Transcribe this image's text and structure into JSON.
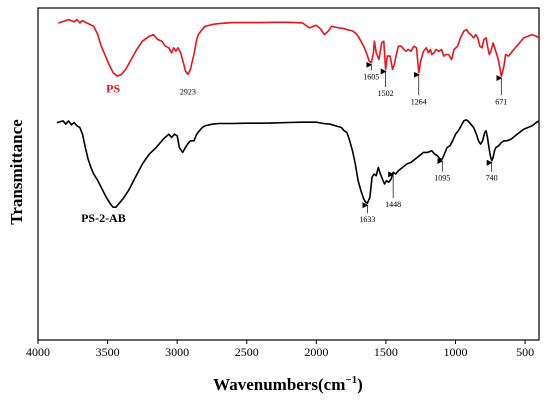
{
  "chart_data": {
    "type": "line",
    "xlabel": "Wavenumbers",
    "xlabel_unit": "(cm",
    "xlabel_unit_sup": "−1",
    "xlabel_unit_close": ")",
    "ylabel": "Transmittance",
    "xlim": [
      4000,
      400
    ],
    "x_reversed": true,
    "xticks": [
      4000,
      3500,
      3000,
      2500,
      2000,
      1500,
      1000,
      500
    ],
    "ylim": [
      0,
      1
    ],
    "y_ticks_shown": false,
    "grid": false,
    "legend": "none",
    "series": [
      {
        "name": "PS",
        "color": "#e8141b",
        "x": [
          3850,
          3780,
          3740,
          3720,
          3700,
          3680,
          3650,
          3600,
          3570,
          3550,
          3520,
          3490,
          3460,
          3430,
          3400,
          3370,
          3330,
          3290,
          3250,
          3200,
          3170,
          3140,
          3110,
          3085,
          3060,
          3040,
          3025,
          3010,
          2995,
          2975,
          2955,
          2940,
          2923,
          2905,
          2880,
          2860,
          2848,
          2830,
          2800,
          2750,
          2700,
          2600,
          2500,
          2400,
          2300,
          2200,
          2100,
          2050,
          2000,
          1970,
          1942,
          1915,
          1890,
          1870,
          1840,
          1800,
          1780,
          1745,
          1720,
          1700,
          1680,
          1660,
          1640,
          1620,
          1605,
          1590,
          1583,
          1570,
          1550,
          1530,
          1515,
          1502,
          1490,
          1470,
          1452,
          1440,
          1425,
          1410,
          1390,
          1370,
          1355,
          1340,
          1320,
          1300,
          1280,
          1264,
          1250,
          1230,
          1210,
          1195,
          1180,
          1170,
          1155,
          1140,
          1120,
          1100,
          1085,
          1070,
          1050,
          1028,
          1010,
          985,
          965,
          940,
          920,
          906,
          890,
          870,
          855,
          840,
          825,
          810,
          795,
          780,
          770,
          757,
          745,
          730,
          715,
          700,
          690,
          671,
          660,
          650,
          640,
          620,
          600,
          570,
          540,
          510,
          480,
          450,
          420,
          400
        ],
        "y": [
          0.955,
          0.965,
          0.958,
          0.965,
          0.955,
          0.962,
          0.955,
          0.945,
          0.92,
          0.89,
          0.86,
          0.83,
          0.805,
          0.795,
          0.8,
          0.815,
          0.845,
          0.875,
          0.9,
          0.915,
          0.92,
          0.905,
          0.9,
          0.885,
          0.88,
          0.865,
          0.88,
          0.87,
          0.88,
          0.865,
          0.835,
          0.81,
          0.8,
          0.815,
          0.86,
          0.905,
          0.92,
          0.93,
          0.945,
          0.95,
          0.953,
          0.956,
          0.956,
          0.956,
          0.957,
          0.957,
          0.955,
          0.94,
          0.948,
          0.937,
          0.92,
          0.93,
          0.945,
          0.943,
          0.94,
          0.938,
          0.935,
          0.932,
          0.925,
          0.915,
          0.9,
          0.885,
          0.865,
          0.84,
          0.835,
          0.865,
          0.9,
          0.865,
          0.845,
          0.895,
          0.9,
          0.815,
          0.855,
          0.855,
          0.815,
          0.83,
          0.86,
          0.885,
          0.885,
          0.875,
          0.87,
          0.875,
          0.87,
          0.885,
          0.88,
          0.805,
          0.84,
          0.87,
          0.88,
          0.865,
          0.875,
          0.86,
          0.865,
          0.875,
          0.87,
          0.875,
          0.855,
          0.86,
          0.86,
          0.845,
          0.875,
          0.885,
          0.91,
          0.93,
          0.935,
          0.925,
          0.92,
          0.91,
          0.92,
          0.91,
          0.885,
          0.88,
          0.905,
          0.91,
          0.885,
          0.86,
          0.87,
          0.895,
          0.875,
          0.855,
          0.84,
          0.795,
          0.81,
          0.83,
          0.86,
          0.855,
          0.865,
          0.88,
          0.895,
          0.91,
          0.915,
          0.92,
          0.915,
          0.91
        ]
      },
      {
        "name": "PS-2-AB",
        "color": "#000000",
        "x": [
          3860,
          3820,
          3800,
          3780,
          3760,
          3740,
          3720,
          3700,
          3680,
          3660,
          3640,
          3620,
          3600,
          3570,
          3540,
          3510,
          3480,
          3460,
          3440,
          3420,
          3390,
          3350,
          3300,
          3250,
          3200,
          3150,
          3100,
          3060,
          3040,
          3020,
          3000,
          2985,
          2960,
          2940,
          2925,
          2905,
          2880,
          2860,
          2850,
          2820,
          2800,
          2750,
          2700,
          2650,
          2600,
          2500,
          2400,
          2300,
          2200,
          2100,
          2000,
          1950,
          1900,
          1860,
          1820,
          1800,
          1780,
          1760,
          1740,
          1720,
          1700,
          1680,
          1660,
          1645,
          1633,
          1615,
          1600,
          1585,
          1570,
          1555,
          1540,
          1525,
          1510,
          1495,
          1480,
          1463,
          1448,
          1430,
          1410,
          1380,
          1350,
          1320,
          1290,
          1260,
          1230,
          1200,
          1170,
          1150,
          1130,
          1110,
          1095,
          1080,
          1060,
          1040,
          1020,
          1000,
          980,
          960,
          940,
          925,
          910,
          890,
          870,
          850,
          835,
          820,
          805,
          790,
          780,
          770,
          760,
          750,
          740,
          730,
          720,
          710,
          690,
          670,
          650,
          630,
          600,
          570,
          540,
          510,
          480,
          450,
          420,
          400
        ],
        "y": [
          0.655,
          0.66,
          0.65,
          0.66,
          0.648,
          0.655,
          0.645,
          0.64,
          0.62,
          0.58,
          0.545,
          0.52,
          0.5,
          0.48,
          0.455,
          0.43,
          0.41,
          0.4,
          0.4,
          0.41,
          0.425,
          0.45,
          0.49,
          0.53,
          0.56,
          0.58,
          0.605,
          0.62,
          0.61,
          0.62,
          0.615,
          0.58,
          0.565,
          0.58,
          0.59,
          0.6,
          0.6,
          0.62,
          0.625,
          0.64,
          0.645,
          0.65,
          0.652,
          0.652,
          0.652,
          0.653,
          0.653,
          0.654,
          0.655,
          0.656,
          0.656,
          0.652,
          0.65,
          0.645,
          0.64,
          0.63,
          0.625,
          0.6,
          0.57,
          0.53,
          0.48,
          0.45,
          0.425,
          0.415,
          0.412,
          0.43,
          0.49,
          0.5,
          0.495,
          0.52,
          0.5,
          0.485,
          0.47,
          0.48,
          0.475,
          0.485,
          0.505,
          0.5,
          0.51,
          0.52,
          0.53,
          0.535,
          0.545,
          0.555,
          0.565,
          0.565,
          0.57,
          0.56,
          0.555,
          0.545,
          0.545,
          0.56,
          0.58,
          0.585,
          0.6,
          0.62,
          0.63,
          0.645,
          0.66,
          0.663,
          0.66,
          0.65,
          0.64,
          0.62,
          0.6,
          0.59,
          0.6,
          0.625,
          0.63,
          0.61,
          0.58,
          0.555,
          0.54,
          0.55,
          0.57,
          0.58,
          0.585,
          0.595,
          0.6,
          0.6,
          0.605,
          0.615,
          0.625,
          0.635,
          0.64,
          0.645,
          0.655,
          0.66
        ]
      }
    ],
    "series_labels": [
      {
        "text": "PS",
        "x": 3460,
        "y": 0.745,
        "color": "#e8141b"
      },
      {
        "text": "PS-2-AB",
        "x": 3530,
        "y": 0.355,
        "color": "#000000"
      }
    ],
    "annotations": [
      {
        "label": "2923",
        "x": 2923,
        "y_peak": 0.8,
        "y_label": 0.74,
        "arrow": false
      },
      {
        "label": "1605",
        "x": 1605,
        "y_peak": 0.835,
        "y_label": 0.785,
        "arrow": true
      },
      {
        "label": "1502",
        "x": 1502,
        "y_peak": 0.815,
        "y_label": 0.735,
        "arrow": true
      },
      {
        "label": "1264",
        "x": 1264,
        "y_peak": 0.805,
        "y_label": 0.71,
        "arrow": true
      },
      {
        "label": "671",
        "x": 671,
        "y_peak": 0.795,
        "y_label": 0.71,
        "arrow": true
      },
      {
        "label": "1633",
        "x": 1633,
        "y_peak": 0.412,
        "y_label": 0.355,
        "arrow": true
      },
      {
        "label": "1448",
        "x": 1448,
        "y_peak": 0.505,
        "y_label": 0.4,
        "arrow": true
      },
      {
        "label": "1095",
        "x": 1095,
        "y_peak": 0.545,
        "y_label": 0.48,
        "arrow": true
      },
      {
        "label": "740",
        "x": 740,
        "y_peak": 0.54,
        "y_label": 0.48,
        "arrow": true
      }
    ]
  }
}
